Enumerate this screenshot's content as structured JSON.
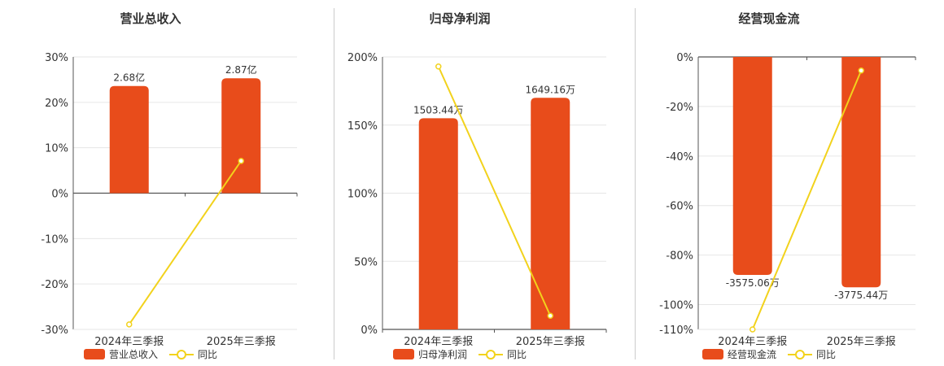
{
  "colors": {
    "bar": "#E84C1B",
    "line": "#F2D21C",
    "grid": "#e6e6e6",
    "axis": "#555555",
    "text": "#333333"
  },
  "legend": {
    "line_label": "同比"
  },
  "chart_data": [
    {
      "type": "bar",
      "title": "营业总收入",
      "categories": [
        "2024年三季报",
        "2025年三季报"
      ],
      "bar_labels": [
        "2.68亿",
        "2.87亿"
      ],
      "bar_values_pct": [
        23.6,
        25.3
      ],
      "line_values_pct": [
        -28.9,
        7.1
      ],
      "series": [
        {
          "name": "营业总收入"
        },
        {
          "name": "同比"
        }
      ],
      "yticks": [
        "30%",
        "20%",
        "10%",
        "0%",
        "-10%",
        "-20%",
        "-30%"
      ],
      "ylim": [
        -30,
        30
      ]
    },
    {
      "type": "bar",
      "title": "归母净利润",
      "categories": [
        "2024年三季报",
        "2025年三季报"
      ],
      "bar_labels": [
        "1503.44万",
        "1649.16万"
      ],
      "bar_values_pct": [
        155,
        170
      ],
      "line_values_pct": [
        193,
        10
      ],
      "series": [
        {
          "name": "归母净利润"
        },
        {
          "name": "同比"
        }
      ],
      "yticks": [
        "200%",
        "150%",
        "100%",
        "50%",
        "0%"
      ],
      "ylim": [
        0,
        200
      ]
    },
    {
      "type": "bar",
      "title": "经营现金流",
      "categories": [
        "2024年三季报",
        "2025年三季报"
      ],
      "bar_labels": [
        "-3575.06万",
        "-3775.44万"
      ],
      "bar_values_pct": [
        -88,
        -93
      ],
      "line_values_pct": [
        -110,
        -5.5
      ],
      "series": [
        {
          "name": "经营现金流"
        },
        {
          "name": "同比"
        }
      ],
      "yticks": [
        "0%",
        "-20%",
        "-40%",
        "-60%",
        "-80%",
        "-100%",
        "-110%"
      ],
      "ylim": [
        -110,
        0
      ]
    }
  ]
}
